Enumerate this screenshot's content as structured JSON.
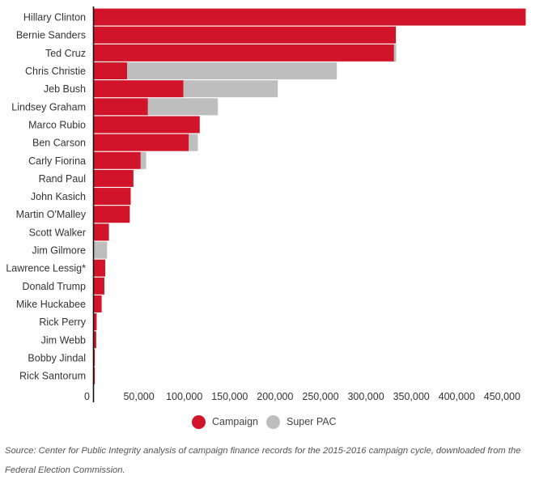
{
  "chart_data": {
    "type": "bar",
    "orientation": "horizontal",
    "stacked": true,
    "categories": [
      "Hillary Clinton",
      "Bernie Sanders",
      "Ted Cruz",
      "Chris Christie",
      "Jeb Bush",
      "Lindsey Graham",
      "Marco Rubio",
      "Ben Carson",
      "Carly Fiorina",
      "Rand Paul",
      "John Kasich",
      "Martin O'Malley",
      "Scott Walker",
      "Jim Gilmore",
      "Lawrence Lessig*",
      "Donald Trump",
      "Mike Huckabee",
      "Rick Perry",
      "Jim Webb",
      "Bobby Jindal",
      "Rick Santorum"
    ],
    "series": [
      {
        "name": "Campaign",
        "color": "#d2142b",
        "values": [
          476000,
          333000,
          331000,
          37000,
          99000,
          60000,
          117000,
          105000,
          52000,
          44000,
          41000,
          40000,
          17000,
          0,
          13000,
          12000,
          9000,
          3500,
          3000,
          1500,
          1500
        ]
      },
      {
        "name": "Super PAC",
        "color": "#bebebe",
        "values": [
          0,
          0,
          2500,
          231000,
          104000,
          77000,
          0,
          10000,
          6000,
          0,
          0,
          0,
          0,
          15000,
          0,
          0,
          0,
          0,
          0,
          0,
          0
        ]
      }
    ],
    "xlim": [
      0,
      480000
    ],
    "xticks": [
      0,
      50000,
      100000,
      150000,
      200000,
      250000,
      300000,
      350000,
      400000,
      450000
    ],
    "xtick_labels": [
      "0",
      "50,000",
      "100,000",
      "150,000",
      "200,000",
      "250,000",
      "300,000",
      "350,000",
      "400,000",
      "450,000"
    ],
    "grid": false,
    "legend_position": "bottom-center"
  },
  "legend": {
    "campaign": "Campaign",
    "super_pac": "Super PAC"
  },
  "source_note": "Source: Center for Public Integrity analysis of campaign finance records for the 2015-2016 campaign cycle, downloaded from the Federal Election Commission."
}
